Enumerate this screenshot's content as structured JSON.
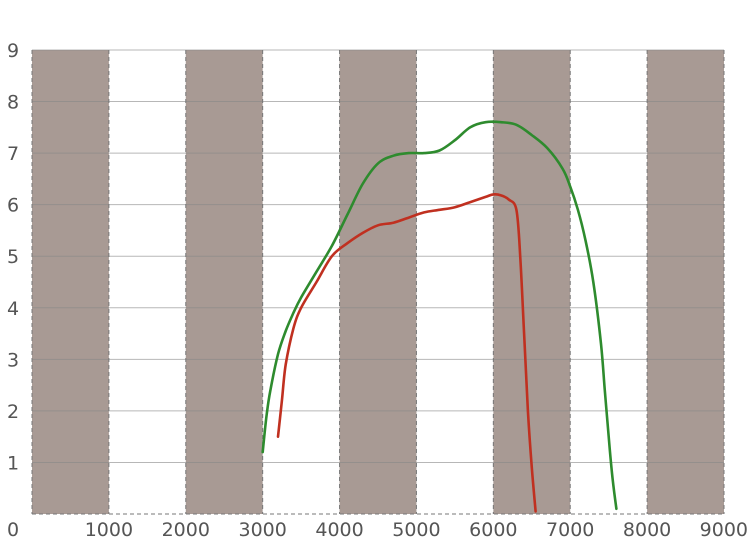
{
  "chart_data": {
    "type": "line",
    "xlim": [
      0,
      9000
    ],
    "ylim": [
      0,
      9
    ],
    "x_ticks": [
      "0",
      "1000",
      "2000",
      "3000",
      "4000",
      "5000",
      "6000",
      "7000",
      "8000",
      "9000"
    ],
    "y_ticks": [
      "1",
      "2",
      "3",
      "4",
      "5",
      "6",
      "7",
      "8",
      "9"
    ],
    "grid": true,
    "background_bands": {
      "color": "#a89a94",
      "ranges": [
        [
          0,
          1000
        ],
        [
          2000,
          3000
        ],
        [
          4000,
          5000
        ],
        [
          6000,
          7000
        ],
        [
          8000,
          9000
        ]
      ]
    },
    "series": [
      {
        "color": "#2e8b2e",
        "x": [
          3000,
          3050,
          3100,
          3200,
          3300,
          3400,
          3500,
          3700,
          3900,
          4100,
          4300,
          4500,
          4700,
          4900,
          5100,
          5300,
          5500,
          5700,
          5900,
          6100,
          6300,
          6500,
          6700,
          6900,
          7000,
          7100,
          7200,
          7300,
          7400,
          7450,
          7500,
          7550,
          7600
        ],
        "y": [
          1.2,
          1.9,
          2.4,
          3.1,
          3.55,
          3.9,
          4.2,
          4.7,
          5.2,
          5.8,
          6.4,
          6.8,
          6.95,
          7.0,
          7.0,
          7.05,
          7.25,
          7.5,
          7.6,
          7.6,
          7.55,
          7.35,
          7.1,
          6.7,
          6.35,
          5.9,
          5.3,
          4.5,
          3.3,
          2.4,
          1.5,
          0.7,
          0.1
        ]
      },
      {
        "color": "#c03020",
        "x": [
          3200,
          3250,
          3300,
          3400,
          3500,
          3700,
          3900,
          4100,
          4300,
          4500,
          4700,
          4900,
          5100,
          5300,
          5500,
          5700,
          5900,
          6000,
          6100,
          6200,
          6300,
          6350,
          6400,
          6450,
          6500,
          6550
        ],
        "y": [
          1.5,
          2.2,
          2.9,
          3.6,
          4.0,
          4.5,
          5.0,
          5.25,
          5.45,
          5.6,
          5.65,
          5.75,
          5.85,
          5.9,
          5.95,
          6.05,
          6.15,
          6.2,
          6.18,
          6.1,
          5.9,
          5.0,
          3.5,
          2.0,
          0.9,
          0.05
        ]
      }
    ]
  }
}
